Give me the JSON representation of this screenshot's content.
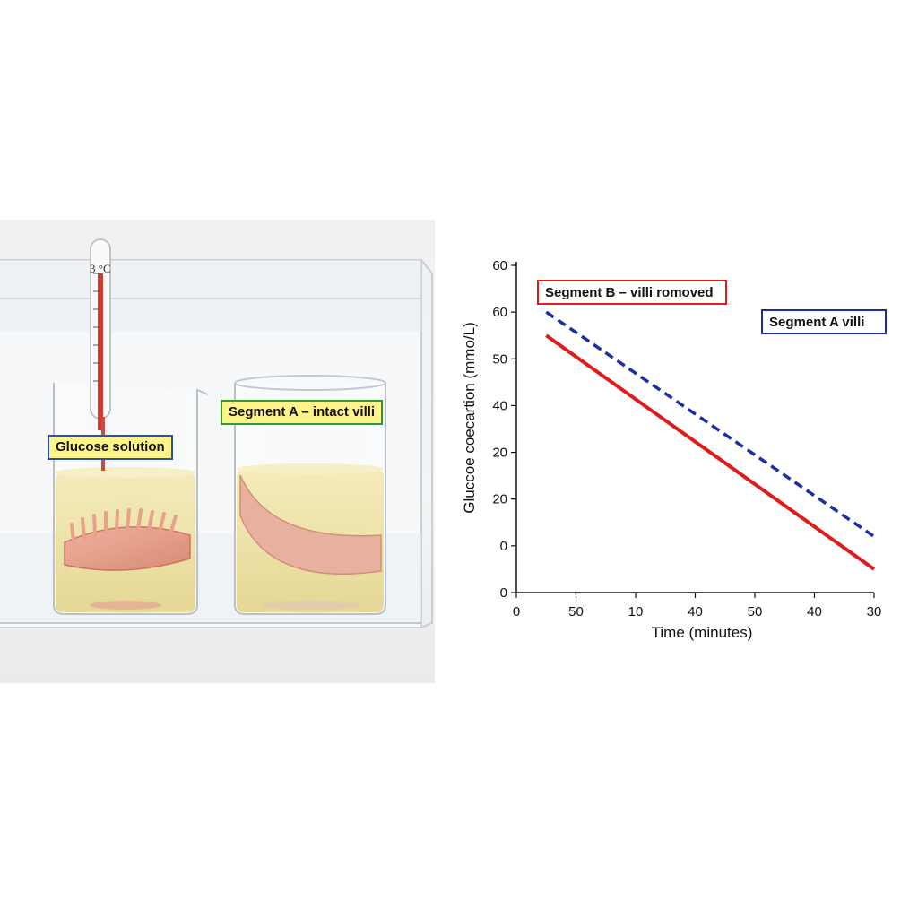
{
  "photo": {
    "thermometer_scale": "3 °C",
    "labels": {
      "glucose_solution": "Glucose solution",
      "segment_a_intact": "Segment A – intact villi"
    }
  },
  "chart_data": {
    "type": "line",
    "title": "",
    "xlabel": "Time (minutes)",
    "ylabel": "Gluccoe coecartion (mmo/L)",
    "x_tick_labels": [
      "0",
      "50",
      "10",
      "40",
      "50",
      "40",
      "30"
    ],
    "y_tick_labels": [
      "0",
      "0",
      "20",
      "20",
      "40",
      "50",
      "60",
      "60"
    ],
    "grid": false,
    "series": [
      {
        "name": "Segment A villi",
        "color": "#1a2fa6",
        "style": "dashed",
        "points": [
          [
            0.5,
            6.0
          ],
          [
            6.0,
            1.2
          ]
        ]
      },
      {
        "name": "Segment B – villi romoved",
        "color": "#e01b1b",
        "style": "solid",
        "points": [
          [
            0.5,
            5.5
          ],
          [
            6.0,
            0.5
          ]
        ]
      }
    ],
    "legend_placement": "top"
  }
}
